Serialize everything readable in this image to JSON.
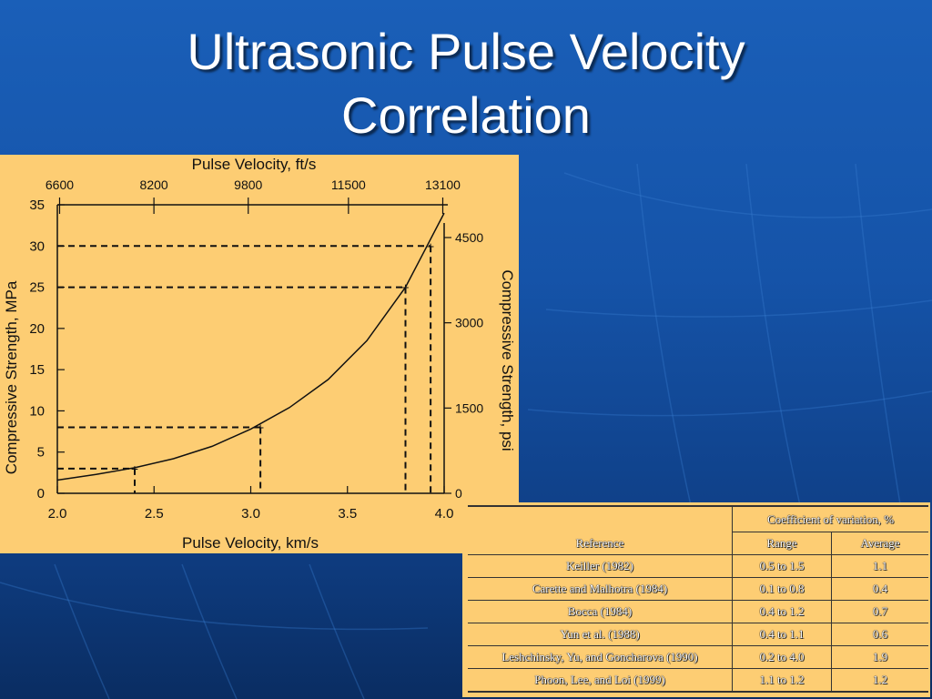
{
  "slide": {
    "title_line1": "Ultrasonic Pulse Velocity",
    "title_line2": "Correlation"
  },
  "colors": {
    "background": "#1553a8",
    "figure_panel": "#fdcd73",
    "title_text": "#ffffff"
  },
  "chart_data": {
    "type": "line",
    "top_axis_label": "Pulse Velocity, ft/s",
    "top_ticks": [
      "6600",
      "8200",
      "9800",
      "11500",
      "13100"
    ],
    "xlabel": "Pulse Velocity, km/s",
    "ylabel": "Compressive Strength, MPa",
    "right_axis_label": "Compressive Strength, psi",
    "right_ticks": [
      "0",
      "1500",
      "3000",
      "4500"
    ],
    "xlim": [
      2.0,
      4.0
    ],
    "ylim": [
      0,
      35
    ],
    "x_ticks": [
      "2.0",
      "2.5",
      "3.0",
      "3.5",
      "4.0"
    ],
    "y_ticks": [
      "0",
      "5",
      "10",
      "15",
      "20",
      "25",
      "30",
      "35"
    ],
    "curve": {
      "x": [
        2.0,
        2.2,
        2.4,
        2.6,
        2.8,
        3.0,
        3.2,
        3.4,
        3.6,
        3.8,
        3.9,
        4.0
      ],
      "y": [
        1.6,
        2.3,
        3.1,
        4.2,
        5.7,
        7.8,
        10.4,
        13.8,
        18.5,
        25.0,
        29.5,
        34.0
      ]
    },
    "marked_points": [
      {
        "x": 2.4,
        "y": 3.0
      },
      {
        "x": 3.05,
        "y": 8.0
      },
      {
        "x": 3.8,
        "y": 25.0
      },
      {
        "x": 3.93,
        "y": 30.0
      }
    ]
  },
  "table": {
    "group_header": "Coefficient of variation, %",
    "headers": [
      "Reference",
      "Range",
      "Average"
    ],
    "rows": [
      [
        "Keiller (1982)",
        "0.5 to 1.5",
        "1.1"
      ],
      [
        "Carette and Malhotra (1984)",
        "0.1 to 0.8",
        "0.4"
      ],
      [
        "Bocca (1984)",
        "0.4 to 1.2",
        "0.7"
      ],
      [
        "Yun et al. (1988)",
        "0.4 to 1.1",
        "0.6"
      ],
      [
        "Leshchinsky, Yu, and Goncharova (1990)",
        "0.2 to 4.0",
        "1.9"
      ],
      [
        "Phoon, Lee, and Loi (1999)",
        "1.1 to 1.2",
        "1.2"
      ]
    ]
  }
}
